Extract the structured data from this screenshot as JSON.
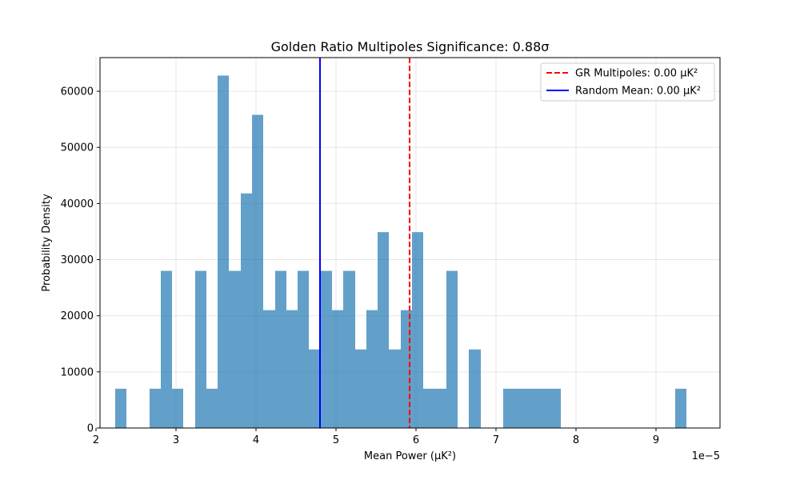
{
  "chart_data": {
    "type": "bar",
    "title": "Golden Ratio Multipoles Significance: 0.88σ",
    "xlabel": "Mean Power (μK²)",
    "ylabel": "Probability Density",
    "x_offset_label": "1e−5",
    "xlim": [
      2.05,
      9.8
    ],
    "ylim": [
      0,
      66000
    ],
    "x_ticks": [
      2,
      3,
      4,
      5,
      6,
      7,
      8,
      9
    ],
    "y_ticks": [
      0,
      10000,
      20000,
      30000,
      40000,
      50000,
      60000
    ],
    "grid": true,
    "bar_color": "#1f77b4",
    "bin_edges": [
      2.24,
      2.38,
      2.52,
      2.67,
      2.81,
      2.95,
      3.09,
      3.24,
      3.38,
      3.52,
      3.66,
      3.81,
      3.95,
      4.09,
      4.24,
      4.38,
      4.52,
      4.66,
      4.81,
      4.95,
      5.09,
      5.24,
      5.38,
      5.52,
      5.66,
      5.81,
      5.95,
      6.09,
      6.24,
      6.38,
      6.52,
      6.66,
      6.81,
      6.95,
      7.09,
      7.24,
      7.38,
      7.52,
      7.66,
      7.81,
      7.95,
      8.09,
      8.24,
      8.38,
      8.52,
      8.66,
      8.81,
      8.95,
      9.09,
      9.24,
      9.38
    ],
    "values": [
      7000,
      0,
      0,
      7000,
      28000,
      7000,
      0,
      28000,
      7000,
      62800,
      28000,
      41800,
      55800,
      21000,
      28000,
      21000,
      28000,
      14000,
      28000,
      21000,
      28000,
      14000,
      21000,
      34900,
      14000,
      21000,
      34900,
      7000,
      7000,
      28000,
      0,
      14000,
      0,
      0,
      7000,
      7000,
      7000,
      7000,
      7000,
      0,
      0,
      0,
      0,
      0,
      0,
      0,
      0,
      0,
      0,
      7000
    ],
    "vlines": [
      {
        "name": "GR Multipoles: 0.00 μK²",
        "x": 5.92,
        "color": "#ff0000",
        "style": "dashed"
      },
      {
        "name": "Random Mean: 0.00 μK²",
        "x": 4.8,
        "color": "#0000ff",
        "style": "solid"
      }
    ],
    "legend_position": "top-right"
  }
}
